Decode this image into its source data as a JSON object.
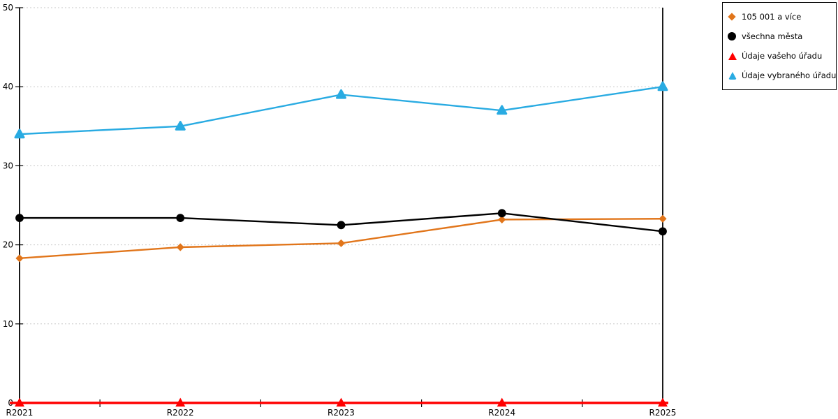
{
  "chart_data": {
    "type": "line",
    "title": "",
    "xlabel": "",
    "ylabel": "",
    "categories": [
      "R2021",
      "R2022",
      "R2023",
      "R2024",
      "R2025"
    ],
    "series": [
      {
        "name": "105 001 a více",
        "color": "#E1751A",
        "marker": "diamond",
        "values": [
          18.3,
          19.7,
          20.2,
          23.2,
          23.3
        ]
      },
      {
        "name": "všechna města",
        "color": "#000000",
        "marker": "circle",
        "values": [
          23.4,
          23.4,
          22.5,
          24.0,
          21.7
        ]
      },
      {
        "name": "Údaje vašeho úřadu",
        "color": "#FF0000",
        "marker": "triangle",
        "values": [
          0,
          0,
          0,
          0,
          0
        ],
        "overhang": [
          14,
          8
        ]
      },
      {
        "name": "Údaje vybraného úřadu",
        "color": "#29ABE2",
        "marker": "triangle-round",
        "values": [
          34,
          35,
          39,
          37,
          40
        ]
      }
    ],
    "ylim": [
      0,
      50
    ],
    "yticks": [
      0,
      10,
      20,
      30,
      40,
      50
    ],
    "grid": "horizontal dotted",
    "gridline_color": "#c7c7c7",
    "axis_color": "#000000",
    "legend_position": "top-right outside plot"
  }
}
